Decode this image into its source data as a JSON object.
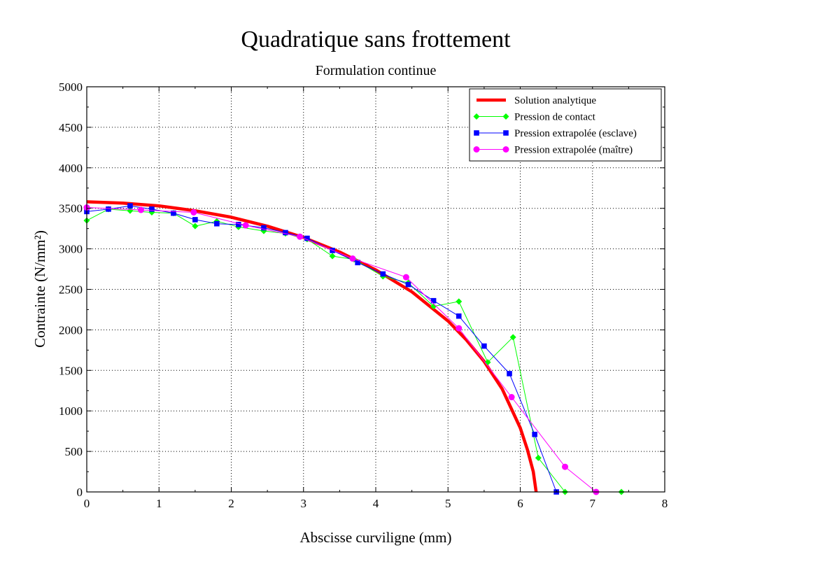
{
  "chart_data": {
    "type": "line",
    "title": "Quadratique sans frottement",
    "subtitle": "Formulation continue",
    "xlabel": "Abscisse curviligne (mm)",
    "ylabel": "Contrainte (N/mm²)",
    "xlim": [
      0,
      8
    ],
    "ylim": [
      0,
      5000
    ],
    "xticks": [
      "0",
      "1",
      "2",
      "3",
      "4",
      "5",
      "6",
      "7",
      "8"
    ],
    "yticks": [
      "0",
      "500",
      "1000",
      "1500",
      "2000",
      "2500",
      "3000",
      "3500",
      "4000",
      "4500",
      "5000"
    ],
    "grid": true,
    "legend_position": "top-right",
    "series": [
      {
        "name": "Solution analytique",
        "color": "#ff0000",
        "marker": "none",
        "x": [
          0,
          0.5,
          1,
          1.5,
          2,
          2.5,
          3,
          3.5,
          4,
          4.5,
          5,
          5.25,
          5.5,
          5.75,
          6,
          6.1,
          6.18,
          6.22
        ],
        "y": [
          3580,
          3565,
          3530,
          3470,
          3390,
          3280,
          3140,
          2960,
          2740,
          2470,
          2110,
          1880,
          1610,
          1270,
          790,
          520,
          250,
          0
        ]
      },
      {
        "name": "Pression de contact",
        "color": "#00ff00",
        "marker": "diamond",
        "x": [
          0,
          0.3,
          0.6,
          0.9,
          1.2,
          1.5,
          1.8,
          2.1,
          2.45,
          2.75,
          3.05,
          3.4,
          3.7,
          4.1,
          4.45,
          4.8,
          5.15,
          5.55,
          5.9,
          6.25,
          6.62,
          7.4
        ],
        "y": [
          3350,
          3490,
          3470,
          3450,
          3440,
          3280,
          3340,
          3270,
          3220,
          3190,
          3120,
          2910,
          2870,
          2660,
          2580,
          2290,
          2350,
          1600,
          1910,
          420,
          0,
          0
        ]
      },
      {
        "name": "Pression extrapolée (esclave)",
        "color": "#0000ff",
        "marker": "square",
        "x": [
          0,
          0.3,
          0.6,
          0.9,
          1.2,
          1.5,
          1.8,
          2.1,
          2.45,
          2.75,
          3.05,
          3.4,
          3.75,
          4.1,
          4.45,
          4.8,
          5.15,
          5.5,
          5.85,
          6.2,
          6.5
        ],
        "y": [
          3460,
          3490,
          3530,
          3490,
          3440,
          3360,
          3310,
          3300,
          3260,
          3200,
          3130,
          2980,
          2830,
          2690,
          2560,
          2360,
          2170,
          1800,
          1460,
          710,
          0
        ]
      },
      {
        "name": "Pression extrapolée (maître)",
        "color": "#ff00ff",
        "marker": "circle",
        "x": [
          0,
          0.75,
          1.48,
          2.2,
          2.95,
          3.68,
          4.42,
          5.15,
          5.88,
          6.62,
          7.05
        ],
        "y": [
          3510,
          3480,
          3450,
          3290,
          3150,
          2880,
          2650,
          2020,
          1170,
          310,
          0
        ]
      }
    ]
  }
}
